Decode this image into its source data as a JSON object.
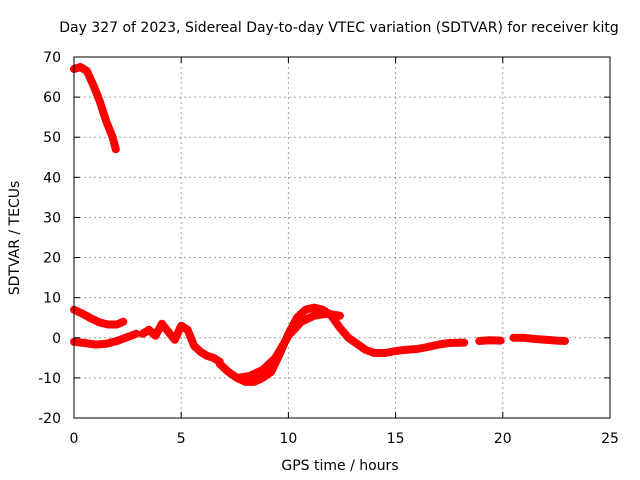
{
  "chart_data": {
    "type": "line",
    "title": "Day 327 of 2023, Sidereal Day-to-day VTEC variation (SDTVAR) for receiver kitg",
    "xlabel": "GPS time / hours",
    "ylabel": "SDTVAR / TECUs",
    "xlim": [
      0,
      25
    ],
    "ylim": [
      -20,
      70
    ],
    "xticks": [
      "0",
      "5",
      "10",
      "15",
      "20",
      "25"
    ],
    "yticks": [
      "-20",
      "-10",
      "0",
      "10",
      "20",
      "30",
      "40",
      "50",
      "60",
      "70"
    ],
    "grid": true,
    "color": "#ff0000",
    "series": [
      {
        "name": "segment-1",
        "x": [
          0,
          0.3,
          0.6,
          0.9,
          1.2,
          1.5,
          1.8,
          1.95
        ],
        "y": [
          67,
          67.5,
          66.5,
          63,
          59,
          54,
          50,
          47
        ]
      },
      {
        "name": "segment-2",
        "x": [
          0,
          0.4,
          0.8,
          1.2,
          1.6,
          2.0,
          2.3
        ],
        "y": [
          7,
          6,
          4.8,
          3.8,
          3.3,
          3.3,
          4
        ]
      },
      {
        "name": "segment-3",
        "x": [
          0,
          0.5,
          1.0,
          1.5,
          2.0,
          2.5,
          2.9
        ],
        "y": [
          -1,
          -1.3,
          -1.7,
          -1.5,
          -0.8,
          0.2,
          1
        ]
      },
      {
        "name": "segment-4",
        "x": [
          3.2,
          3.5,
          3.8,
          4.1,
          4.4,
          4.7,
          5.0,
          5.3,
          5.6,
          5.9,
          6.2,
          6.5,
          6.8
        ],
        "y": [
          1,
          2,
          0.5,
          3.5,
          1.5,
          -0.5,
          3,
          2,
          -2,
          -3.5,
          -4.5,
          -5,
          -6
        ]
      },
      {
        "name": "segment-5",
        "x": [
          6.8,
          7.2,
          7.6,
          8.0,
          8.4,
          8.8,
          9.2,
          9.6,
          10.0,
          10.4,
          10.8,
          11.2,
          11.6,
          12.0,
          12.4,
          12.8,
          13.2,
          13.6,
          14.0,
          14.5,
          15.0,
          15.5,
          16.0,
          16.5,
          17.0,
          17.5,
          18.2
        ],
        "y": [
          -6.5,
          -8.5,
          -10,
          -11,
          -11,
          -10,
          -8.5,
          -4,
          1,
          5,
          7,
          7.5,
          7,
          5.5,
          2.5,
          0,
          -1.5,
          -3,
          -3.8,
          -3.8,
          -3.3,
          -3,
          -2.8,
          -2.3,
          -1.7,
          -1.3,
          -1.2
        ]
      },
      {
        "name": "segment-6",
        "x": [
          7.6,
          8.2,
          8.8,
          9.4,
          10.0,
          10.6,
          11.2,
          11.8,
          12.4
        ],
        "y": [
          -10,
          -9.5,
          -8,
          -5,
          0.5,
          4,
          5.5,
          6,
          5.5
        ]
      },
      {
        "name": "segment-7",
        "x": [
          18.9,
          19.4,
          19.9
        ],
        "y": [
          -0.8,
          -0.6,
          -0.7
        ]
      },
      {
        "name": "segment-8",
        "x": [
          20.5,
          21.0,
          21.5,
          22.0,
          22.5,
          22.9
        ],
        "y": [
          0,
          0,
          -0.3,
          -0.5,
          -0.7,
          -0.8
        ]
      }
    ]
  }
}
